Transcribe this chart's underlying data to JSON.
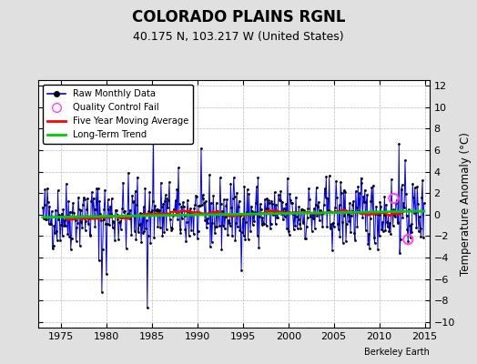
{
  "title": "COLORADO PLAINS RGNL",
  "subtitle": "40.175 N, 103.217 W (United States)",
  "ylabel": "Temperature Anomaly (°C)",
  "watermark": "Berkeley Earth",
  "xlim": [
    1972.5,
    2015.5
  ],
  "ylim": [
    -10.5,
    12.5
  ],
  "yticks": [
    -10,
    -8,
    -6,
    -4,
    -2,
    0,
    2,
    4,
    6,
    8,
    10,
    12
  ],
  "xticks": [
    1975,
    1980,
    1985,
    1990,
    1995,
    2000,
    2005,
    2010,
    2015
  ],
  "start_year": 1973,
  "end_year": 2014,
  "raw_color": "#0000ee",
  "ma_color": "#ff0000",
  "trend_color": "#00cc00",
  "qc_color": "#ff44ff",
  "bg_color": "#e0e0e0",
  "plot_bg_color": "#ffffff",
  "grid_color": "#bbbbbb",
  "seed": 42
}
